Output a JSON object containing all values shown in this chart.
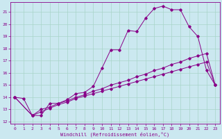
{
  "xlabel": "Windchill (Refroidissement éolien,°C)",
  "background_color": "#cbe8f0",
  "grid_color": "#a8d4c8",
  "line_color": "#880088",
  "spine_color": "#880088",
  "xlim": [
    -0.5,
    23.5
  ],
  "ylim": [
    11.8,
    21.8
  ],
  "yticks": [
    12,
    13,
    14,
    15,
    16,
    17,
    18,
    19,
    20,
    21
  ],
  "xticks": [
    0,
    1,
    2,
    3,
    4,
    5,
    6,
    7,
    8,
    9,
    10,
    11,
    12,
    13,
    14,
    15,
    16,
    17,
    18,
    19,
    20,
    21,
    22,
    23
  ],
  "series1_x": [
    0,
    1,
    2,
    3,
    4,
    5,
    6,
    7,
    8,
    9,
    10,
    11,
    12,
    13,
    14,
    15,
    16,
    17,
    18,
    19,
    20,
    21,
    22,
    23
  ],
  "series1_y": [
    14.0,
    13.9,
    12.5,
    12.5,
    13.5,
    13.5,
    13.8,
    14.3,
    14.4,
    14.9,
    16.4,
    17.9,
    17.9,
    19.5,
    19.4,
    20.5,
    21.3,
    21.5,
    21.2,
    21.2,
    19.8,
    19.0,
    16.2,
    15.0
  ],
  "series2_x": [
    0,
    2,
    3,
    4,
    5,
    6,
    7,
    8,
    9,
    10,
    11,
    12,
    13,
    14,
    15,
    16,
    17,
    18,
    19,
    20,
    21,
    22,
    23
  ],
  "series2_y": [
    14.0,
    12.5,
    12.8,
    13.1,
    13.4,
    13.6,
    13.9,
    14.1,
    14.3,
    14.5,
    14.7,
    14.9,
    15.1,
    15.3,
    15.5,
    15.7,
    15.9,
    16.1,
    16.3,
    16.5,
    16.7,
    16.9,
    15.0
  ],
  "series3_x": [
    0,
    2,
    3,
    4,
    5,
    6,
    7,
    8,
    9,
    10,
    11,
    12,
    13,
    14,
    15,
    16,
    17,
    18,
    19,
    20,
    21,
    22,
    23
  ],
  "series3_y": [
    14.0,
    12.5,
    13.0,
    13.2,
    13.5,
    13.7,
    14.0,
    14.2,
    14.5,
    14.7,
    15.0,
    15.2,
    15.4,
    15.7,
    15.9,
    16.2,
    16.4,
    16.7,
    16.9,
    17.2,
    17.4,
    17.6,
    15.0
  ],
  "marker_size": 1.8,
  "line_width": 0.7,
  "tick_fontsize": 4.5,
  "xlabel_fontsize": 5.0
}
